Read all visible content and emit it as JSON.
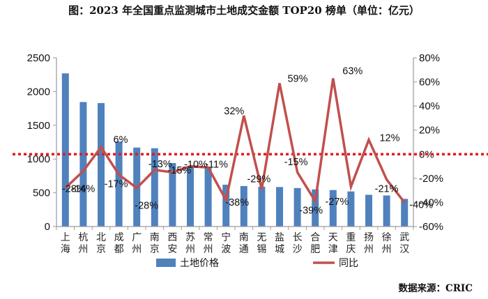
{
  "title": "图：2023 年全国重点监测城市土地成交金额 TOP20 榜单（单位：亿元）",
  "source": "数据来源：CRIC",
  "chart_data": {
    "type": "bar+line",
    "title": "图：2023 年全国重点监测城市土地成交金额 TOP20 榜单（单位：亿元）",
    "categories": [
      "上海",
      "杭州",
      "北京",
      "成都",
      "广州",
      "南京",
      "西安",
      "苏州",
      "常州",
      "宁波",
      "南通",
      "无锡",
      "盐城",
      "长沙",
      "合肥",
      "天津",
      "重庆",
      "扬州",
      "徐州",
      "武汉"
    ],
    "series": [
      {
        "name": "土地价格",
        "type": "bar",
        "axis": "left",
        "color": "#4f81bd",
        "values": [
          2270,
          1845,
          1830,
          1260,
          1170,
          1160,
          940,
          900,
          880,
          620,
          600,
          590,
          585,
          570,
          550,
          540,
          520,
          470,
          460,
          410
        ]
      },
      {
        "name": "同比",
        "type": "line",
        "axis": "right",
        "color": "#c0504d",
        "values": [
          -28,
          -14,
          6,
          -17,
          -28,
          -13,
          -15,
          -10,
          -11,
          -38,
          32,
          -29,
          59,
          -15,
          -39,
          63,
          -27,
          12,
          -21,
          -40
        ],
        "labels": [
          "-28%",
          "-14%",
          "6%",
          "-17%",
          "-28%",
          "-13%",
          "-15%",
          "-10%",
          "-11%",
          "-38%",
          "32%",
          "-29%",
          "59%",
          "-15%",
          "-39%",
          "63%",
          "-27%",
          "12%",
          "-21%",
          "-40%"
        ]
      }
    ],
    "left_axis": {
      "min": 0,
      "max": 2500,
      "ticks": [
        0,
        500,
        1000,
        1500,
        2000,
        2500
      ]
    },
    "right_axis": {
      "min": -60,
      "max": 80,
      "ticks": [
        "-60%",
        "-40%",
        "-20%",
        "0%",
        "20%",
        "40%",
        "60%",
        "80%"
      ]
    },
    "reference_line": {
      "value": "0%",
      "axis": "right",
      "style": "dotted",
      "color": "#e31a1c"
    },
    "legend": [
      "土地价格",
      "同比"
    ],
    "legend_position": "bottom",
    "grid": false,
    "xlabel": "",
    "ylabel": ""
  }
}
